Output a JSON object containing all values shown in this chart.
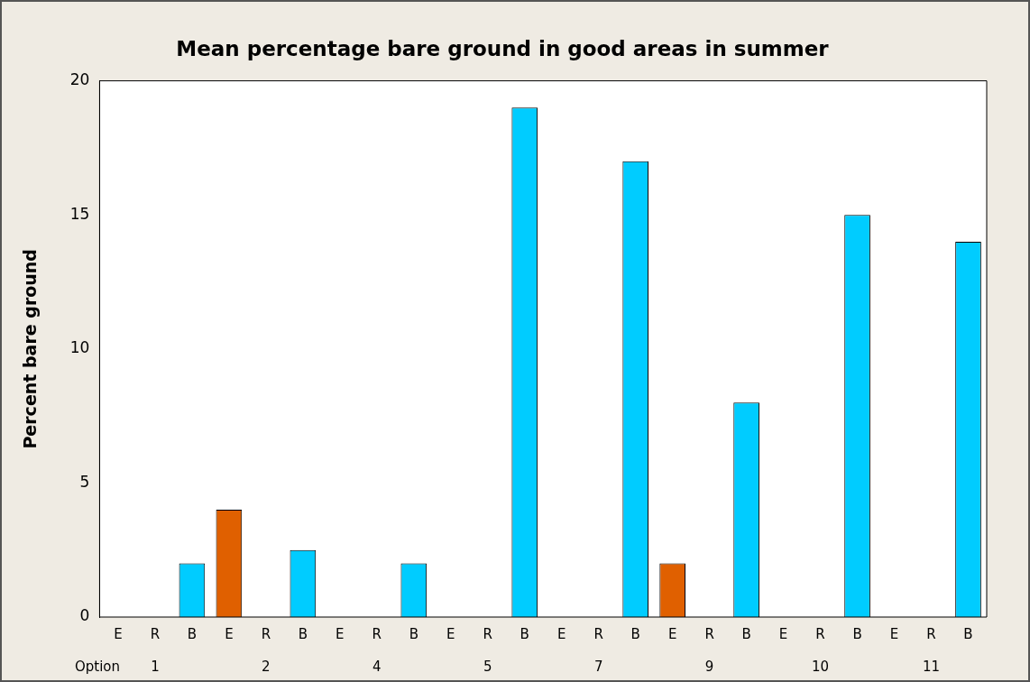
{
  "chart_data": {
    "type": "bar",
    "title": "Mean percentage bare ground in good areas in summer",
    "ylabel": "Percent bare ground",
    "categories": [
      "E",
      "R",
      "B",
      "E",
      "R",
      "B",
      "E",
      "R",
      "B",
      "E",
      "R",
      "B",
      "E",
      "R",
      "B",
      "E",
      "R",
      "B",
      "E",
      "R",
      "B",
      "E",
      "R",
      "B"
    ],
    "values": [
      0,
      0,
      2,
      4,
      0,
      2.5,
      0,
      0,
      2,
      0,
      0,
      19,
      0,
      0,
      17,
      2,
      0,
      8,
      0,
      0,
      15,
      0,
      0,
      14
    ],
    "colors": [
      "#e06000",
      "#00ccff",
      "#00ccff",
      "#e06000",
      "#00ccff",
      "#00ccff",
      "#e06000",
      "#00ccff",
      "#00ccff",
      "#e06000",
      "#00ccff",
      "#00ccff",
      "#e06000",
      "#00ccff",
      "#00ccff",
      "#e06000",
      "#00ccff",
      "#00ccff",
      "#e06000",
      "#00ccff",
      "#00ccff",
      "#e06000",
      "#00ccff",
      "#00ccff"
    ],
    "ylim": [
      0,
      20
    ],
    "yticks": [
      0,
      5,
      10,
      15,
      20
    ],
    "annotations": [
      "Option",
      "1",
      "2",
      "4",
      "5",
      "7",
      "9",
      "10",
      "11"
    ]
  }
}
